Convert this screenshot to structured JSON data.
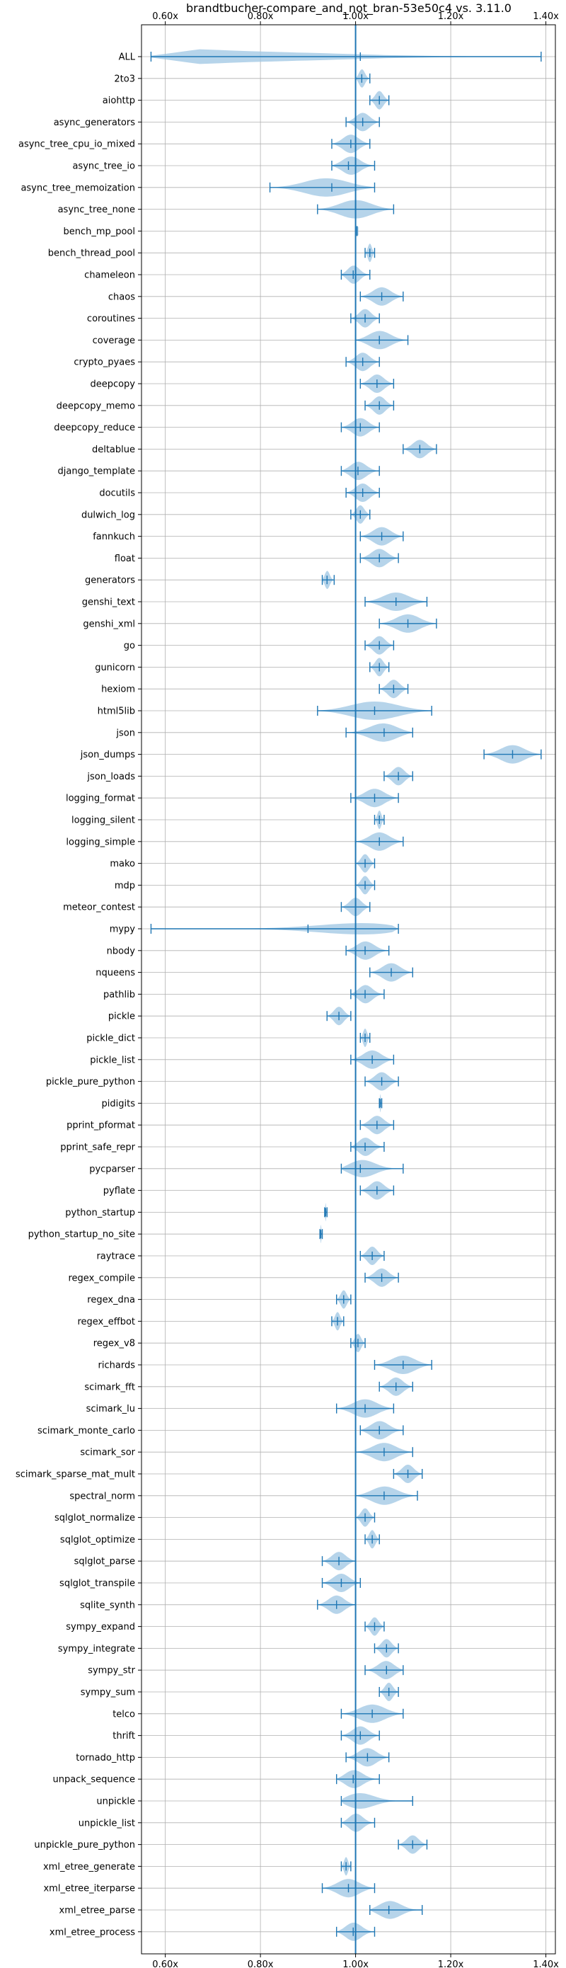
{
  "chart_data": {
    "type": "violin",
    "title": "brandtbucher-compare_and_not_bran-53e50c4 vs. 3.11.0",
    "xlabel": "",
    "ylabel": "",
    "xlim": [
      0.55,
      1.42
    ],
    "x_ticks": [
      0.6,
      0.8,
      1.0,
      1.2,
      1.4
    ],
    "x_tick_labels": [
      "0.60x",
      "0.80x",
      "1.00x",
      "1.20x",
      "1.40x"
    ],
    "tick_positions": [
      "top",
      "bottom"
    ],
    "reference_line": 1.0,
    "grid": true,
    "colors": {
      "line": "#1f77b4",
      "fill": "#9ec5e3",
      "grid": "#b0b0b0"
    },
    "series": [
      {
        "name": "ALL",
        "min": 0.57,
        "max": 1.39,
        "median": 1.01,
        "mean": 1.02,
        "widths": [
          0.1,
          0.8,
          0.6,
          0.45,
          0.3,
          0.15,
          0.06,
          0.03,
          0.02
        ]
      },
      {
        "name": "2to3",
        "min": 1.0,
        "max": 1.03,
        "median": 1.013,
        "mean": 1.013
      },
      {
        "name": "aiohttp",
        "min": 1.03,
        "max": 1.07,
        "median": 1.05,
        "mean": 1.05
      },
      {
        "name": "async_generators",
        "min": 0.98,
        "max": 1.05,
        "median": 1.015,
        "mean": 1.015
      },
      {
        "name": "async_tree_cpu_io_mixed",
        "min": 0.95,
        "max": 1.03,
        "median": 0.99,
        "mean": 0.99
      },
      {
        "name": "async_tree_io",
        "min": 0.95,
        "max": 1.04,
        "median": 0.985,
        "mean": 0.99
      },
      {
        "name": "async_tree_memoization",
        "min": 0.82,
        "max": 1.04,
        "median": 0.95,
        "mean": 0.94
      },
      {
        "name": "async_tree_none",
        "min": 0.92,
        "max": 1.08,
        "median": 1.0,
        "mean": 1.0
      },
      {
        "name": "bench_mp_pool",
        "min": 1.003,
        "max": 1.003,
        "median": 1.003,
        "mean": 1.003
      },
      {
        "name": "bench_thread_pool",
        "min": 1.02,
        "max": 1.04,
        "median": 1.03,
        "mean": 1.03
      },
      {
        "name": "chameleon",
        "min": 0.97,
        "max": 1.03,
        "median": 0.995,
        "mean": 0.995
      },
      {
        "name": "chaos",
        "min": 1.01,
        "max": 1.1,
        "median": 1.055,
        "mean": 1.055
      },
      {
        "name": "coroutines",
        "min": 0.99,
        "max": 1.05,
        "median": 1.02,
        "mean": 1.02
      },
      {
        "name": "coverage",
        "min": 1.0,
        "max": 1.11,
        "median": 1.05,
        "mean": 1.05
      },
      {
        "name": "crypto_pyaes",
        "min": 0.98,
        "max": 1.05,
        "median": 1.015,
        "mean": 1.015
      },
      {
        "name": "deepcopy",
        "min": 1.01,
        "max": 1.08,
        "median": 1.045,
        "mean": 1.045
      },
      {
        "name": "deepcopy_memo",
        "min": 1.02,
        "max": 1.08,
        "median": 1.05,
        "mean": 1.05
      },
      {
        "name": "deepcopy_reduce",
        "min": 0.97,
        "max": 1.05,
        "median": 1.01,
        "mean": 1.01
      },
      {
        "name": "deltablue",
        "min": 1.1,
        "max": 1.17,
        "median": 1.135,
        "mean": 1.135
      },
      {
        "name": "django_template",
        "min": 0.97,
        "max": 1.05,
        "median": 1.005,
        "mean": 1.005
      },
      {
        "name": "docutils",
        "min": 0.98,
        "max": 1.05,
        "median": 1.015,
        "mean": 1.015
      },
      {
        "name": "dulwich_log",
        "min": 0.99,
        "max": 1.03,
        "median": 1.01,
        "mean": 1.01
      },
      {
        "name": "fannkuch",
        "min": 1.01,
        "max": 1.1,
        "median": 1.055,
        "mean": 1.055
      },
      {
        "name": "float",
        "min": 1.01,
        "max": 1.09,
        "median": 1.05,
        "mean": 1.05
      },
      {
        "name": "generators",
        "min": 0.93,
        "max": 0.955,
        "median": 0.94,
        "mean": 0.94
      },
      {
        "name": "genshi_text",
        "min": 1.02,
        "max": 1.15,
        "median": 1.085,
        "mean": 1.085
      },
      {
        "name": "genshi_xml",
        "min": 1.05,
        "max": 1.17,
        "median": 1.11,
        "mean": 1.11
      },
      {
        "name": "go",
        "min": 1.02,
        "max": 1.08,
        "median": 1.05,
        "mean": 1.05
      },
      {
        "name": "gunicorn",
        "min": 1.03,
        "max": 1.07,
        "median": 1.05,
        "mean": 1.05
      },
      {
        "name": "hexiom",
        "min": 1.05,
        "max": 1.11,
        "median": 1.08,
        "mean": 1.08
      },
      {
        "name": "html5lib",
        "min": 0.92,
        "max": 1.16,
        "median": 1.04,
        "mean": 1.04
      },
      {
        "name": "json",
        "min": 0.98,
        "max": 1.12,
        "median": 1.06,
        "mean": 1.06
      },
      {
        "name": "json_dumps",
        "min": 1.27,
        "max": 1.39,
        "median": 1.33,
        "mean": 1.33
      },
      {
        "name": "json_loads",
        "min": 1.06,
        "max": 1.12,
        "median": 1.09,
        "mean": 1.09
      },
      {
        "name": "logging_format",
        "min": 0.99,
        "max": 1.09,
        "median": 1.04,
        "mean": 1.04
      },
      {
        "name": "logging_silent",
        "min": 1.04,
        "max": 1.06,
        "median": 1.05,
        "mean": 1.05
      },
      {
        "name": "logging_simple",
        "min": 1.0,
        "max": 1.1,
        "median": 1.05,
        "mean": 1.05
      },
      {
        "name": "mako",
        "min": 1.0,
        "max": 1.04,
        "median": 1.02,
        "mean": 1.02
      },
      {
        "name": "mdp",
        "min": 1.0,
        "max": 1.04,
        "median": 1.02,
        "mean": 1.02
      },
      {
        "name": "meteor_contest",
        "min": 0.97,
        "max": 1.03,
        "median": 1.0,
        "mean": 1.0
      },
      {
        "name": "mypy",
        "min": 0.57,
        "max": 1.09,
        "median": 0.9,
        "mean": 1.08
      },
      {
        "name": "nbody",
        "min": 0.98,
        "max": 1.07,
        "median": 1.02,
        "mean": 1.02
      },
      {
        "name": "nqueens",
        "min": 1.03,
        "max": 1.12,
        "median": 1.075,
        "mean": 1.075
      },
      {
        "name": "pathlib",
        "min": 0.99,
        "max": 1.06,
        "median": 1.02,
        "mean": 1.02
      },
      {
        "name": "pickle",
        "min": 0.94,
        "max": 0.99,
        "median": 0.965,
        "mean": 0.965
      },
      {
        "name": "pickle_dict",
        "min": 1.01,
        "max": 1.03,
        "median": 1.02,
        "mean": 1.02
      },
      {
        "name": "pickle_list",
        "min": 0.99,
        "max": 1.08,
        "median": 1.035,
        "mean": 1.035
      },
      {
        "name": "pickle_pure_python",
        "min": 1.02,
        "max": 1.09,
        "median": 1.055,
        "mean": 1.055
      },
      {
        "name": "pidigits",
        "min": 1.05,
        "max": 1.055,
        "median": 1.052,
        "mean": 1.052
      },
      {
        "name": "pprint_pformat",
        "min": 1.01,
        "max": 1.08,
        "median": 1.045,
        "mean": 1.045
      },
      {
        "name": "pprint_safe_repr",
        "min": 0.99,
        "max": 1.06,
        "median": 1.02,
        "mean": 1.02
      },
      {
        "name": "pycparser",
        "min": 0.97,
        "max": 1.1,
        "median": 1.01,
        "mean": 1.01
      },
      {
        "name": "pyflate",
        "min": 1.01,
        "max": 1.08,
        "median": 1.045,
        "mean": 1.045
      },
      {
        "name": "python_startup",
        "min": 0.935,
        "max": 0.94,
        "median": 0.937,
        "mean": 0.937
      },
      {
        "name": "python_startup_no_site",
        "min": 0.925,
        "max": 0.93,
        "median": 0.927,
        "mean": 0.927
      },
      {
        "name": "raytrace",
        "min": 1.01,
        "max": 1.06,
        "median": 1.035,
        "mean": 1.035
      },
      {
        "name": "regex_compile",
        "min": 1.02,
        "max": 1.09,
        "median": 1.055,
        "mean": 1.055
      },
      {
        "name": "regex_dna",
        "min": 0.96,
        "max": 0.99,
        "median": 0.975,
        "mean": 0.975
      },
      {
        "name": "regex_effbot",
        "min": 0.95,
        "max": 0.975,
        "median": 0.962,
        "mean": 0.962
      },
      {
        "name": "regex_v8",
        "min": 0.99,
        "max": 1.02,
        "median": 1.005,
        "mean": 1.005
      },
      {
        "name": "richards",
        "min": 1.04,
        "max": 1.16,
        "median": 1.1,
        "mean": 1.1
      },
      {
        "name": "scimark_fft",
        "min": 1.05,
        "max": 1.12,
        "median": 1.085,
        "mean": 1.085
      },
      {
        "name": "scimark_lu",
        "min": 0.96,
        "max": 1.08,
        "median": 1.02,
        "mean": 1.02
      },
      {
        "name": "scimark_monte_carlo",
        "min": 1.01,
        "max": 1.1,
        "median": 1.05,
        "mean": 1.05
      },
      {
        "name": "scimark_sor",
        "min": 1.0,
        "max": 1.12,
        "median": 1.06,
        "mean": 1.06
      },
      {
        "name": "scimark_sparse_mat_mult",
        "min": 1.08,
        "max": 1.14,
        "median": 1.11,
        "mean": 1.11
      },
      {
        "name": "spectral_norm",
        "min": 1.0,
        "max": 1.13,
        "median": 1.06,
        "mean": 1.06
      },
      {
        "name": "sqlglot_normalize",
        "min": 1.0,
        "max": 1.04,
        "median": 1.02,
        "mean": 1.02
      },
      {
        "name": "sqlglot_optimize",
        "min": 1.02,
        "max": 1.05,
        "median": 1.035,
        "mean": 1.035
      },
      {
        "name": "sqlglot_parse",
        "min": 0.93,
        "max": 1.0,
        "median": 0.965,
        "mean": 0.965
      },
      {
        "name": "sqlglot_transpile",
        "min": 0.93,
        "max": 1.01,
        "median": 0.97,
        "mean": 0.97
      },
      {
        "name": "sqlite_synth",
        "min": 0.92,
        "max": 1.0,
        "median": 0.96,
        "mean": 0.96
      },
      {
        "name": "sympy_expand",
        "min": 1.02,
        "max": 1.06,
        "median": 1.04,
        "mean": 1.04
      },
      {
        "name": "sympy_integrate",
        "min": 1.04,
        "max": 1.09,
        "median": 1.065,
        "mean": 1.065
      },
      {
        "name": "sympy_str",
        "min": 1.02,
        "max": 1.1,
        "median": 1.065,
        "mean": 1.065
      },
      {
        "name": "sympy_sum",
        "min": 1.05,
        "max": 1.09,
        "median": 1.07,
        "mean": 1.07
      },
      {
        "name": "telco",
        "min": 0.97,
        "max": 1.1,
        "median": 1.035,
        "mean": 1.035
      },
      {
        "name": "thrift",
        "min": 0.97,
        "max": 1.05,
        "median": 1.01,
        "mean": 1.01
      },
      {
        "name": "tornado_http",
        "min": 0.98,
        "max": 1.07,
        "median": 1.025,
        "mean": 1.025
      },
      {
        "name": "unpack_sequence",
        "min": 0.96,
        "max": 1.05,
        "median": 0.995,
        "mean": 0.995
      },
      {
        "name": "unpickle",
        "min": 0.97,
        "max": 1.12,
        "median": 1.0,
        "mean": 1.0
      },
      {
        "name": "unpickle_list",
        "min": 0.97,
        "max": 1.04,
        "median": 1.0,
        "mean": 1.0
      },
      {
        "name": "unpickle_pure_python",
        "min": 1.09,
        "max": 1.15,
        "median": 1.12,
        "mean": 1.12
      },
      {
        "name": "xml_etree_generate",
        "min": 0.97,
        "max": 0.99,
        "median": 0.98,
        "mean": 0.98
      },
      {
        "name": "xml_etree_iterparse",
        "min": 0.93,
        "max": 1.04,
        "median": 0.985,
        "mean": 0.985
      },
      {
        "name": "xml_etree_parse",
        "min": 1.03,
        "max": 1.14,
        "median": 1.07,
        "mean": 1.07
      },
      {
        "name": "xml_etree_process",
        "min": 0.96,
        "max": 1.04,
        "median": 0.995,
        "mean": 0.995
      }
    ]
  }
}
